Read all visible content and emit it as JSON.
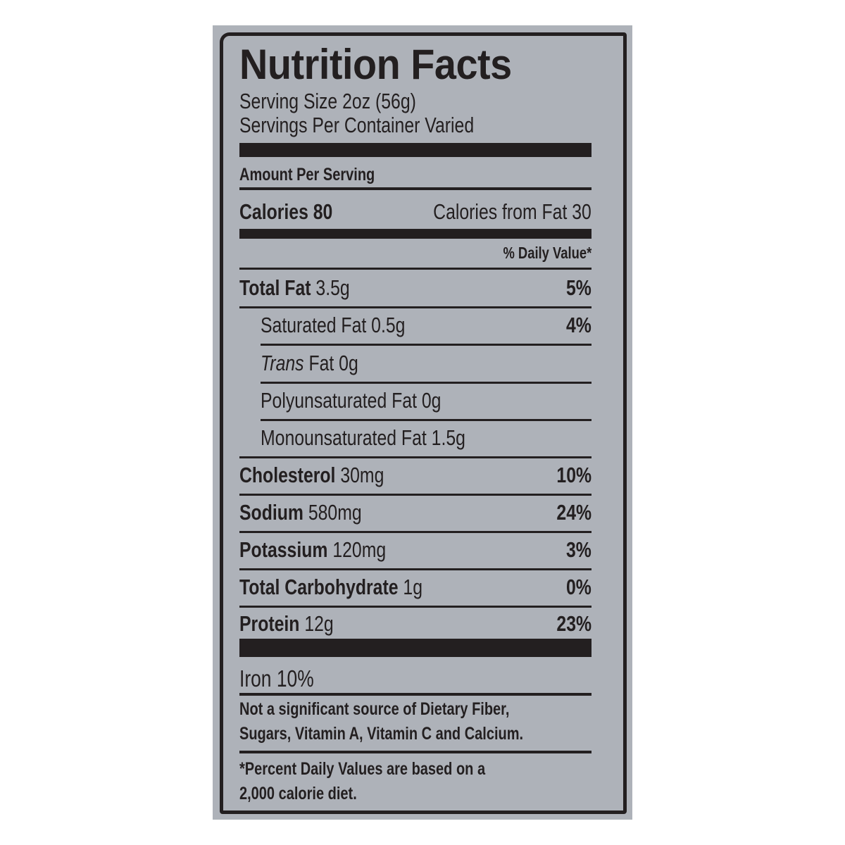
{
  "label": {
    "title": "Nutrition Facts",
    "serving_size": "Serving Size 2oz (56g)",
    "servings_per_container": "Servings Per Container Varied",
    "amount_per_serving": "Amount Per Serving",
    "calories": "Calories 80",
    "calories_from_fat": "Calories from Fat 30",
    "daily_value_header": "% Daily Value*",
    "nutrients": [
      {
        "name": "Total Fat",
        "amount": "3.5g",
        "dv": "5%"
      },
      {
        "name": "Saturated Fat",
        "amount": "0.5g",
        "dv": "4%"
      },
      {
        "name": "Trans",
        "amount": "Fat 0g",
        "dv": ""
      },
      {
        "name": "Polyunsaturated Fat",
        "amount": "0g",
        "dv": ""
      },
      {
        "name": "Monounsaturated Fat",
        "amount": "1.5g",
        "dv": ""
      },
      {
        "name": "Cholesterol",
        "amount": "30mg",
        "dv": "10%"
      },
      {
        "name": "Sodium",
        "amount": "580mg",
        "dv": "24%"
      },
      {
        "name": "Potassium",
        "amount": "120mg",
        "dv": "3%"
      },
      {
        "name": "Total Carbohydrate",
        "amount": "1g",
        "dv": "0%"
      },
      {
        "name": "Protein",
        "amount": "12g",
        "dv": "23%"
      }
    ],
    "iron": "Iron 10%",
    "note_line1": "Not a significant source of Dietary Fiber,",
    "note_line2": "Sugars, Vitamin A, Vitamin C and Calcium.",
    "footnote_line1": "*Percent Daily Values are based on a",
    "footnote_line2": "2,000 calorie diet."
  },
  "colors": {
    "ink": "#231f20",
    "panel": "#aeb2b9"
  }
}
